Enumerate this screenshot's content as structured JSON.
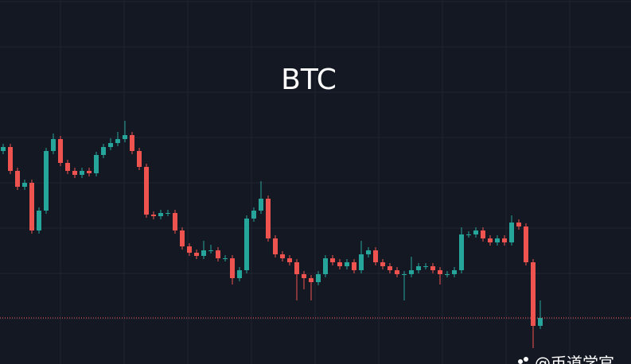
{
  "chart_data": {
    "type": "candlestick",
    "title": "BTC",
    "watermark": "@币道学官",
    "up_color": "#26a69a",
    "down_color": "#ef5350",
    "ylim": [
      0,
      458
    ],
    "open": [
      268,
      273,
      243,
      223,
      228,
      168,
      193,
      268,
      283,
      253,
      243,
      238,
      243,
      240,
      263,
      273,
      278,
      283,
      288,
      268,
      248,
      188,
      186,
      190,
      190,
      168,
      148,
      140,
      136,
      143,
      143,
      133,
      133,
      108,
      118,
      183,
      193,
      208,
      158,
      138,
      133,
      128,
      113,
      108,
      103,
      113,
      133,
      128,
      123,
      128,
      118,
      138,
      143,
      128,
      123,
      118,
      113,
      113,
      118,
      123,
      123,
      118,
      113,
      113,
      118,
      163,
      163,
      168,
      158,
      153,
      158,
      153,
      178,
      173,
      128,
      48
    ],
    "high": [
      277,
      277,
      247,
      232,
      232,
      197,
      272,
      290,
      287,
      257,
      247,
      247,
      247,
      267,
      277,
      284,
      292,
      306,
      292,
      272,
      252,
      192,
      194,
      194,
      194,
      172,
      152,
      144,
      155,
      150,
      147,
      137,
      137,
      122,
      187,
      197,
      230,
      212,
      162,
      142,
      137,
      132,
      117,
      112,
      117,
      137,
      137,
      132,
      132,
      132,
      155,
      147,
      147,
      132,
      127,
      122,
      117,
      135,
      127,
      127,
      127,
      122,
      117,
      122,
      172,
      167,
      172,
      172,
      162,
      162,
      162,
      187,
      182,
      177,
      132,
      80
    ],
    "low": [
      264,
      239,
      219,
      219,
      164,
      164,
      189,
      264,
      249,
      239,
      234,
      234,
      236,
      236,
      259,
      269,
      274,
      279,
      264,
      244,
      184,
      182,
      182,
      186,
      164,
      144,
      136,
      132,
      132,
      139,
      129,
      129,
      100,
      104,
      114,
      179,
      189,
      154,
      134,
      129,
      124,
      80,
      94,
      80,
      99,
      109,
      124,
      119,
      119,
      114,
      114,
      134,
      124,
      119,
      114,
      109,
      80,
      109,
      114,
      119,
      114,
      100,
      109,
      109,
      114,
      159,
      159,
      154,
      149,
      149,
      149,
      149,
      169,
      124,
      20,
      44
    ],
    "close": [
      273,
      243,
      223,
      228,
      168,
      193,
      268,
      283,
      253,
      243,
      238,
      243,
      240,
      263,
      273,
      278,
      283,
      288,
      268,
      248,
      188,
      186,
      190,
      190,
      168,
      148,
      140,
      136,
      143,
      143,
      133,
      133,
      108,
      118,
      183,
      193,
      208,
      158,
      138,
      133,
      128,
      113,
      108,
      103,
      113,
      133,
      128,
      123,
      128,
      118,
      138,
      143,
      128,
      123,
      118,
      113,
      113,
      118,
      123,
      123,
      118,
      113,
      113,
      118,
      163,
      163,
      168,
      158,
      153,
      158,
      153,
      178,
      173,
      128,
      48,
      58
    ]
  }
}
